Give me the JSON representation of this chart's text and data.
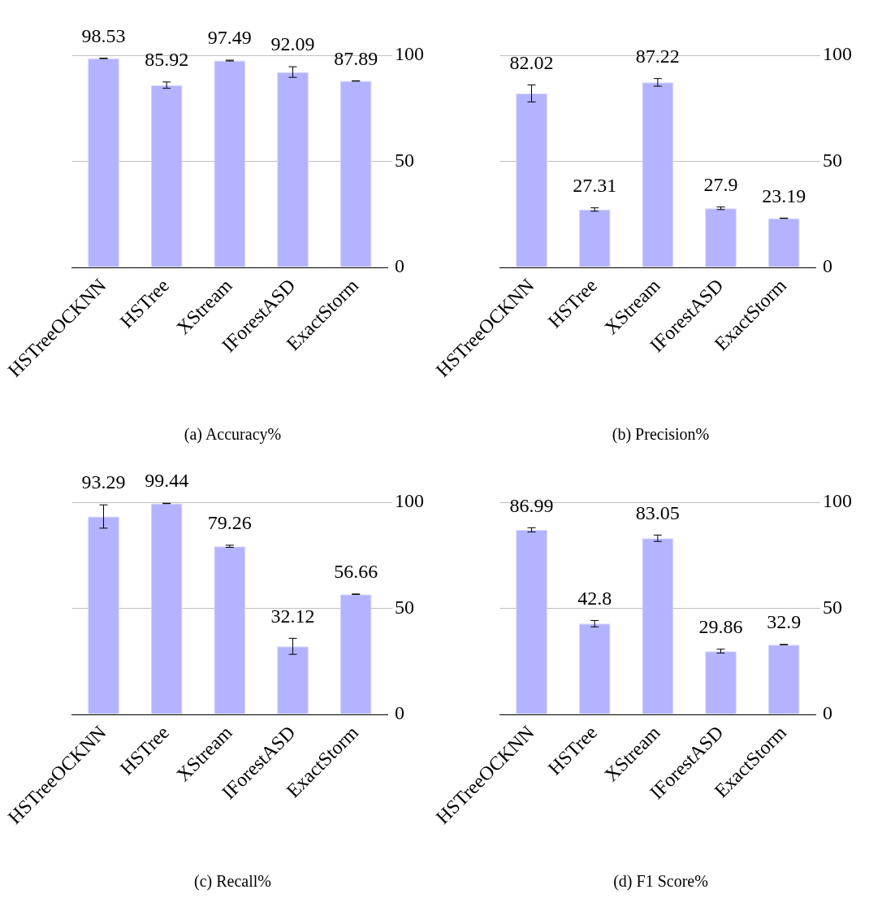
{
  "chart_data": [
    {
      "type": "bar",
      "title": "(a) Accuracy%",
      "categories": [
        "HSTreeOCKNN",
        "HSTree",
        "XStream",
        "IForestASD",
        "ExactStorm"
      ],
      "values": [
        98.53,
        85.92,
        97.49,
        92.09,
        87.89
      ],
      "errors": [
        0.1,
        1.5,
        0.2,
        2.5,
        0.1
      ],
      "color": "#b3b3ff",
      "ylim": [
        0,
        100
      ],
      "yticks": [
        0,
        50,
        100
      ],
      "grid": "y",
      "data_labels": true
    },
    {
      "type": "bar",
      "title": "(b) Precision%",
      "categories": [
        "HSTreeOCKNN",
        "HSTree",
        "XStream",
        "IForestASD",
        "ExactStorm"
      ],
      "values": [
        82.02,
        27.31,
        87.22,
        27.9,
        23.19
      ],
      "errors": [
        4,
        0.8,
        1.8,
        0.6,
        0.1
      ],
      "color": "#b3b3ff",
      "ylim": [
        0,
        100
      ],
      "yticks": [
        0,
        50,
        100
      ],
      "grid": "y",
      "data_labels": true
    },
    {
      "type": "bar",
      "title": "(c) Recall%",
      "categories": [
        "HSTreeOCKNN",
        "HSTree",
        "XStream",
        "IForestASD",
        "ExactStorm"
      ],
      "values": [
        93.29,
        99.44,
        79.26,
        32.12,
        56.66
      ],
      "errors": [
        5.5,
        0.1,
        0.5,
        3.8,
        0.1
      ],
      "color": "#b3b3ff",
      "ylim": [
        0,
        100
      ],
      "yticks": [
        0,
        50,
        100
      ],
      "grid": "y",
      "data_labels": true
    },
    {
      "type": "bar",
      "title": "(d) F1 Score%",
      "categories": [
        "HSTreeOCKNN",
        "HSTree",
        "XStream",
        "IForestASD",
        "ExactStorm"
      ],
      "values": [
        86.99,
        42.8,
        83.05,
        29.86,
        32.9
      ],
      "errors": [
        1,
        1.5,
        1.5,
        0.9,
        0.1
      ],
      "color": "#b3b3ff",
      "ylim": [
        0,
        100
      ],
      "yticks": [
        0,
        50,
        100
      ],
      "grid": "y",
      "data_labels": true
    }
  ]
}
